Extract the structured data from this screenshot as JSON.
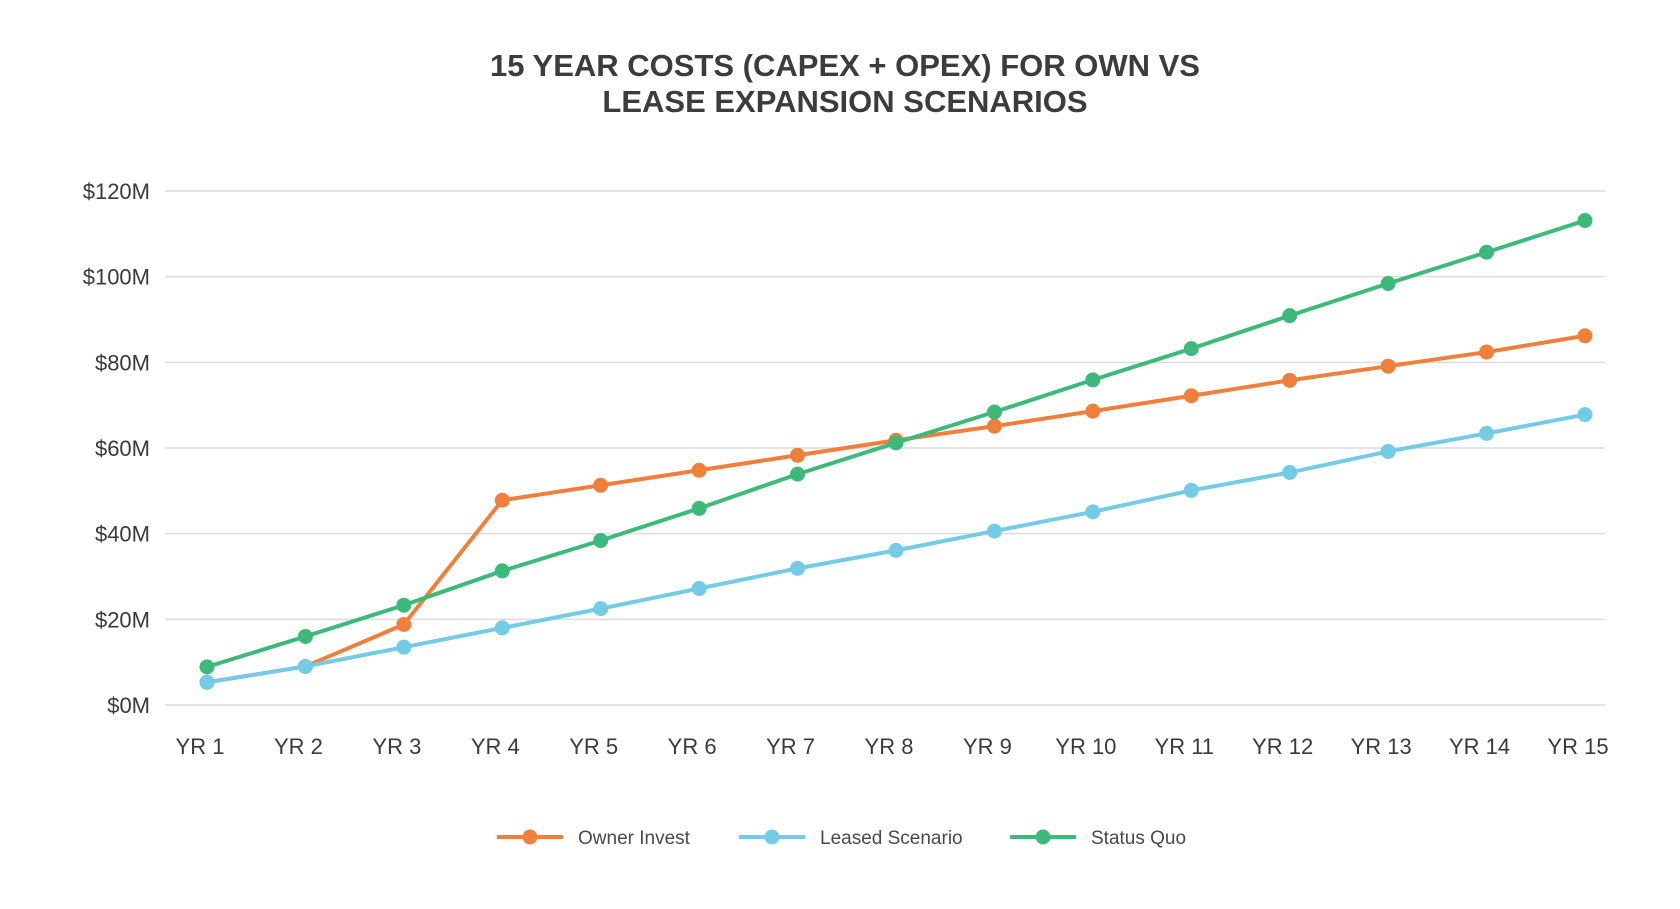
{
  "chart_data": {
    "type": "line",
    "title_lines": [
      "15 YEAR COSTS (CAPEX + OPEX) FOR OWN VS",
      "LEASE EXPANSION SCENARIOS"
    ],
    "categories": [
      "YR 1",
      "YR 2",
      "YR 3",
      "YR 4",
      "YR 5",
      "YR 6",
      "YR 7",
      "YR 8",
      "YR 9",
      "YR 10",
      "YR 11",
      "YR 12",
      "YR 13",
      "YR 14",
      "YR 15"
    ],
    "y_ticks": [
      0,
      20,
      40,
      60,
      80,
      100,
      120
    ],
    "y_tick_labels": [
      "$0M",
      "$20M",
      "$40M",
      "$60M",
      "$80M",
      "$100M",
      "$120M"
    ],
    "ylim": [
      0,
      120
    ],
    "grid": true,
    "legend_position": "bottom",
    "series": [
      {
        "name": "Owner Invest",
        "color": "#f07f3c",
        "values": [
          5.3,
          9.0,
          18.8,
          47.8,
          51.3,
          54.8,
          58.3,
          61.8,
          65.1,
          68.6,
          72.2,
          75.8,
          79.1,
          82.4,
          86.2
        ]
      },
      {
        "name": "Leased Scenario",
        "color": "#74cbe6",
        "values": [
          5.3,
          9.0,
          13.5,
          18.0,
          22.5,
          27.2,
          31.9,
          36.1,
          40.6,
          45.1,
          50.1,
          54.3,
          59.2,
          63.4,
          67.8
        ]
      },
      {
        "name": "Status Quo",
        "color": "#3dba7b",
        "values": [
          8.9,
          16.0,
          23.3,
          31.3,
          38.4,
          45.9,
          53.9,
          61.2,
          68.4,
          75.9,
          83.2,
          90.9,
          98.4,
          105.7,
          113.1
        ]
      }
    ]
  }
}
